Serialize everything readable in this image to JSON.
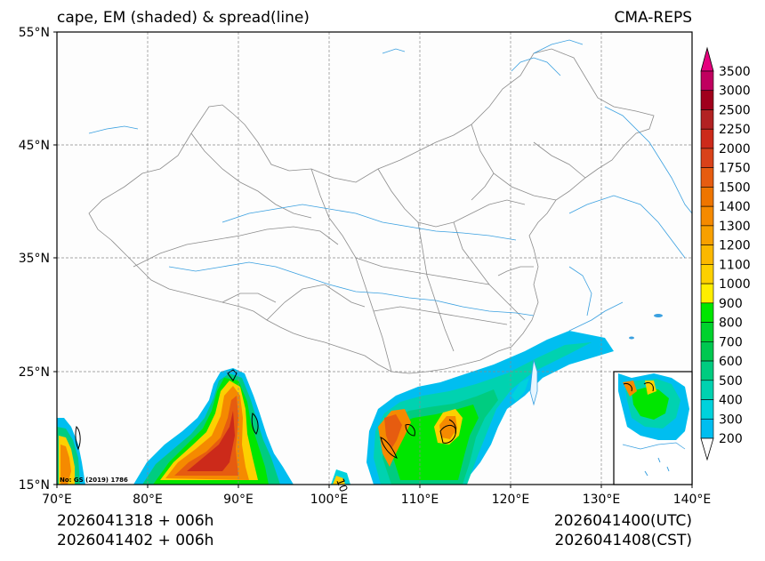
{
  "title": {
    "left": "cape, EM (shaded) & spread(line)",
    "right": "CMA-REPS"
  },
  "axes": {
    "lat_ticks": [
      "55°N",
      "45°N",
      "35°N",
      "25°N",
      "15°N"
    ],
    "lon_ticks": [
      "70°E",
      "80°E",
      "90°E",
      "100°E",
      "110°E",
      "120°E",
      "130°E",
      "140°E"
    ],
    "lat_range": [
      15,
      55
    ],
    "lon_range": [
      70,
      140
    ]
  },
  "colorbar": {
    "levels": [
      "3500",
      "3000",
      "2500",
      "2250",
      "2000",
      "1750",
      "1500",
      "1400",
      "1300",
      "1200",
      "1100",
      "1000",
      "900",
      "800",
      "700",
      "600",
      "500",
      "400",
      "300",
      "200"
    ],
    "colors": [
      "#c0005f",
      "#a0001c",
      "#b22222",
      "#cc2a1a",
      "#d9421a",
      "#e65c10",
      "#ee7500",
      "#f58a00",
      "#f8a000",
      "#fbb800",
      "#fdd000",
      "#ffee00",
      "#00e600",
      "#00d22d",
      "#00c850",
      "#00cc80",
      "#00d2b0",
      "#00d2dc",
      "#00bef0",
      "#008cf0"
    ],
    "top_arrow_color": "#e6007e",
    "bottom_arrow_color": "#ffffff"
  },
  "annotations": {
    "map_note": "No: GS (2019) 1786",
    "contour_label": "10"
  },
  "footer": {
    "left_line1": "2026041318  +  006h",
    "left_line2": "2026041402  +  006h",
    "right_line1": "2026041400(UTC)",
    "right_line2": "2026041408(CST)"
  }
}
